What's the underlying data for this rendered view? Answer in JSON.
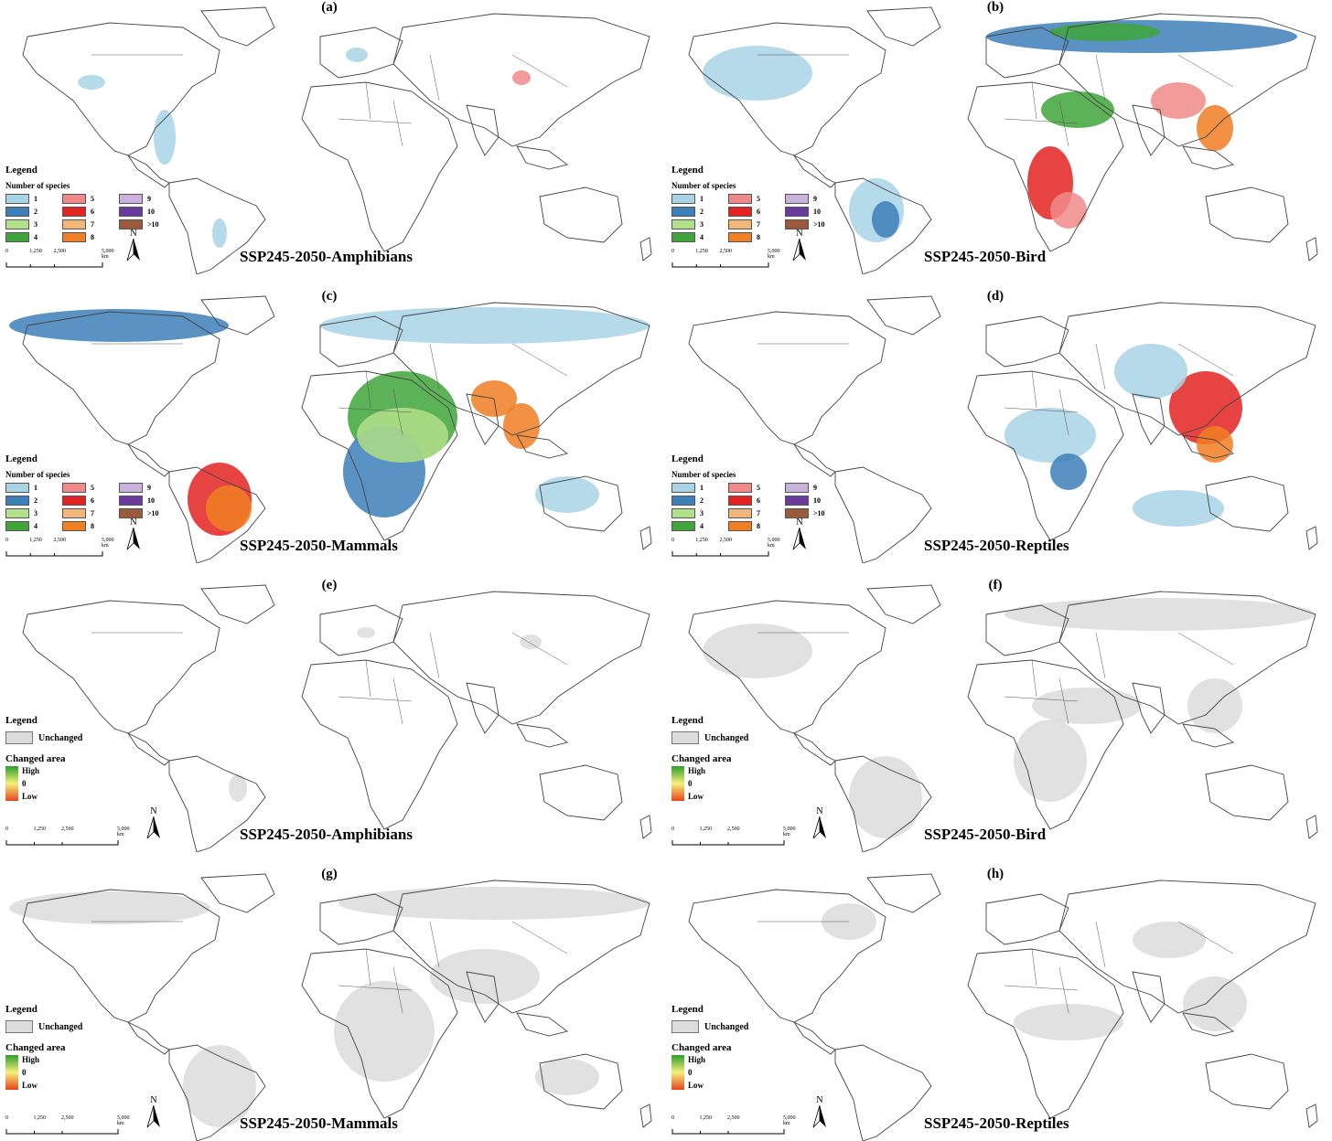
{
  "panels": [
    {
      "id": "a",
      "label": "(a)",
      "title": "SSP245-2050-Amphibians",
      "kind": "count"
    },
    {
      "id": "b",
      "label": "(b)",
      "title": "SSP245-2050-Bird",
      "kind": "count"
    },
    {
      "id": "c",
      "label": "(c)",
      "title": "SSP245-2050-Mammals",
      "kind": "count"
    },
    {
      "id": "d",
      "label": "(d)",
      "title": "SSP245-2050-Reptiles",
      "kind": "count"
    },
    {
      "id": "e",
      "label": "(e)",
      "title": "SSP245-2050-Amphibians",
      "kind": "change"
    },
    {
      "id": "f",
      "label": "(f)",
      "title": "SSP245-2050-Bird",
      "kind": "change"
    },
    {
      "id": "g",
      "label": "(g)",
      "title": "SSP245-2050-Mammals",
      "kind": "change"
    },
    {
      "id": "h",
      "label": "(h)",
      "title": "SSP245-2050-Reptiles",
      "kind": "change"
    }
  ],
  "legend_count": {
    "title": "Legend",
    "subtitle": "Number of species",
    "classes": [
      {
        "label": "1",
        "color": "#a8d4e6"
      },
      {
        "label": "5",
        "color": "#f08a8a"
      },
      {
        "label": "9",
        "color": "#c9b3dc"
      },
      {
        "label": "2",
        "color": "#3d7fb8"
      },
      {
        "label": "6",
        "color": "#e32222"
      },
      {
        "label": "10",
        "color": "#6a3a9e"
      },
      {
        "label": "3",
        "color": "#b3e08a"
      },
      {
        "label": "7",
        "color": "#f2b778"
      },
      {
        "label": ">10",
        "color": "#9b5a3c"
      },
      {
        "label": "4",
        "color": "#3fa53a"
      },
      {
        "label": "8",
        "color": "#f07e22"
      },
      {
        "label": "",
        "color": ""
      }
    ]
  },
  "legend_change": {
    "title": "Legend",
    "unchanged": "Unchanged",
    "unchanged_color": "#dcdcdc",
    "changed_title": "Changed area",
    "high": "High",
    "zero": "0",
    "low": "Low",
    "high_color": "#2e9e2e",
    "mid_color": "#f5f07a",
    "low_color": "#e8451c"
  },
  "scale": {
    "ticks": [
      "0",
      "1,250",
      "2,500",
      "5,000 km"
    ]
  },
  "north": "N"
}
